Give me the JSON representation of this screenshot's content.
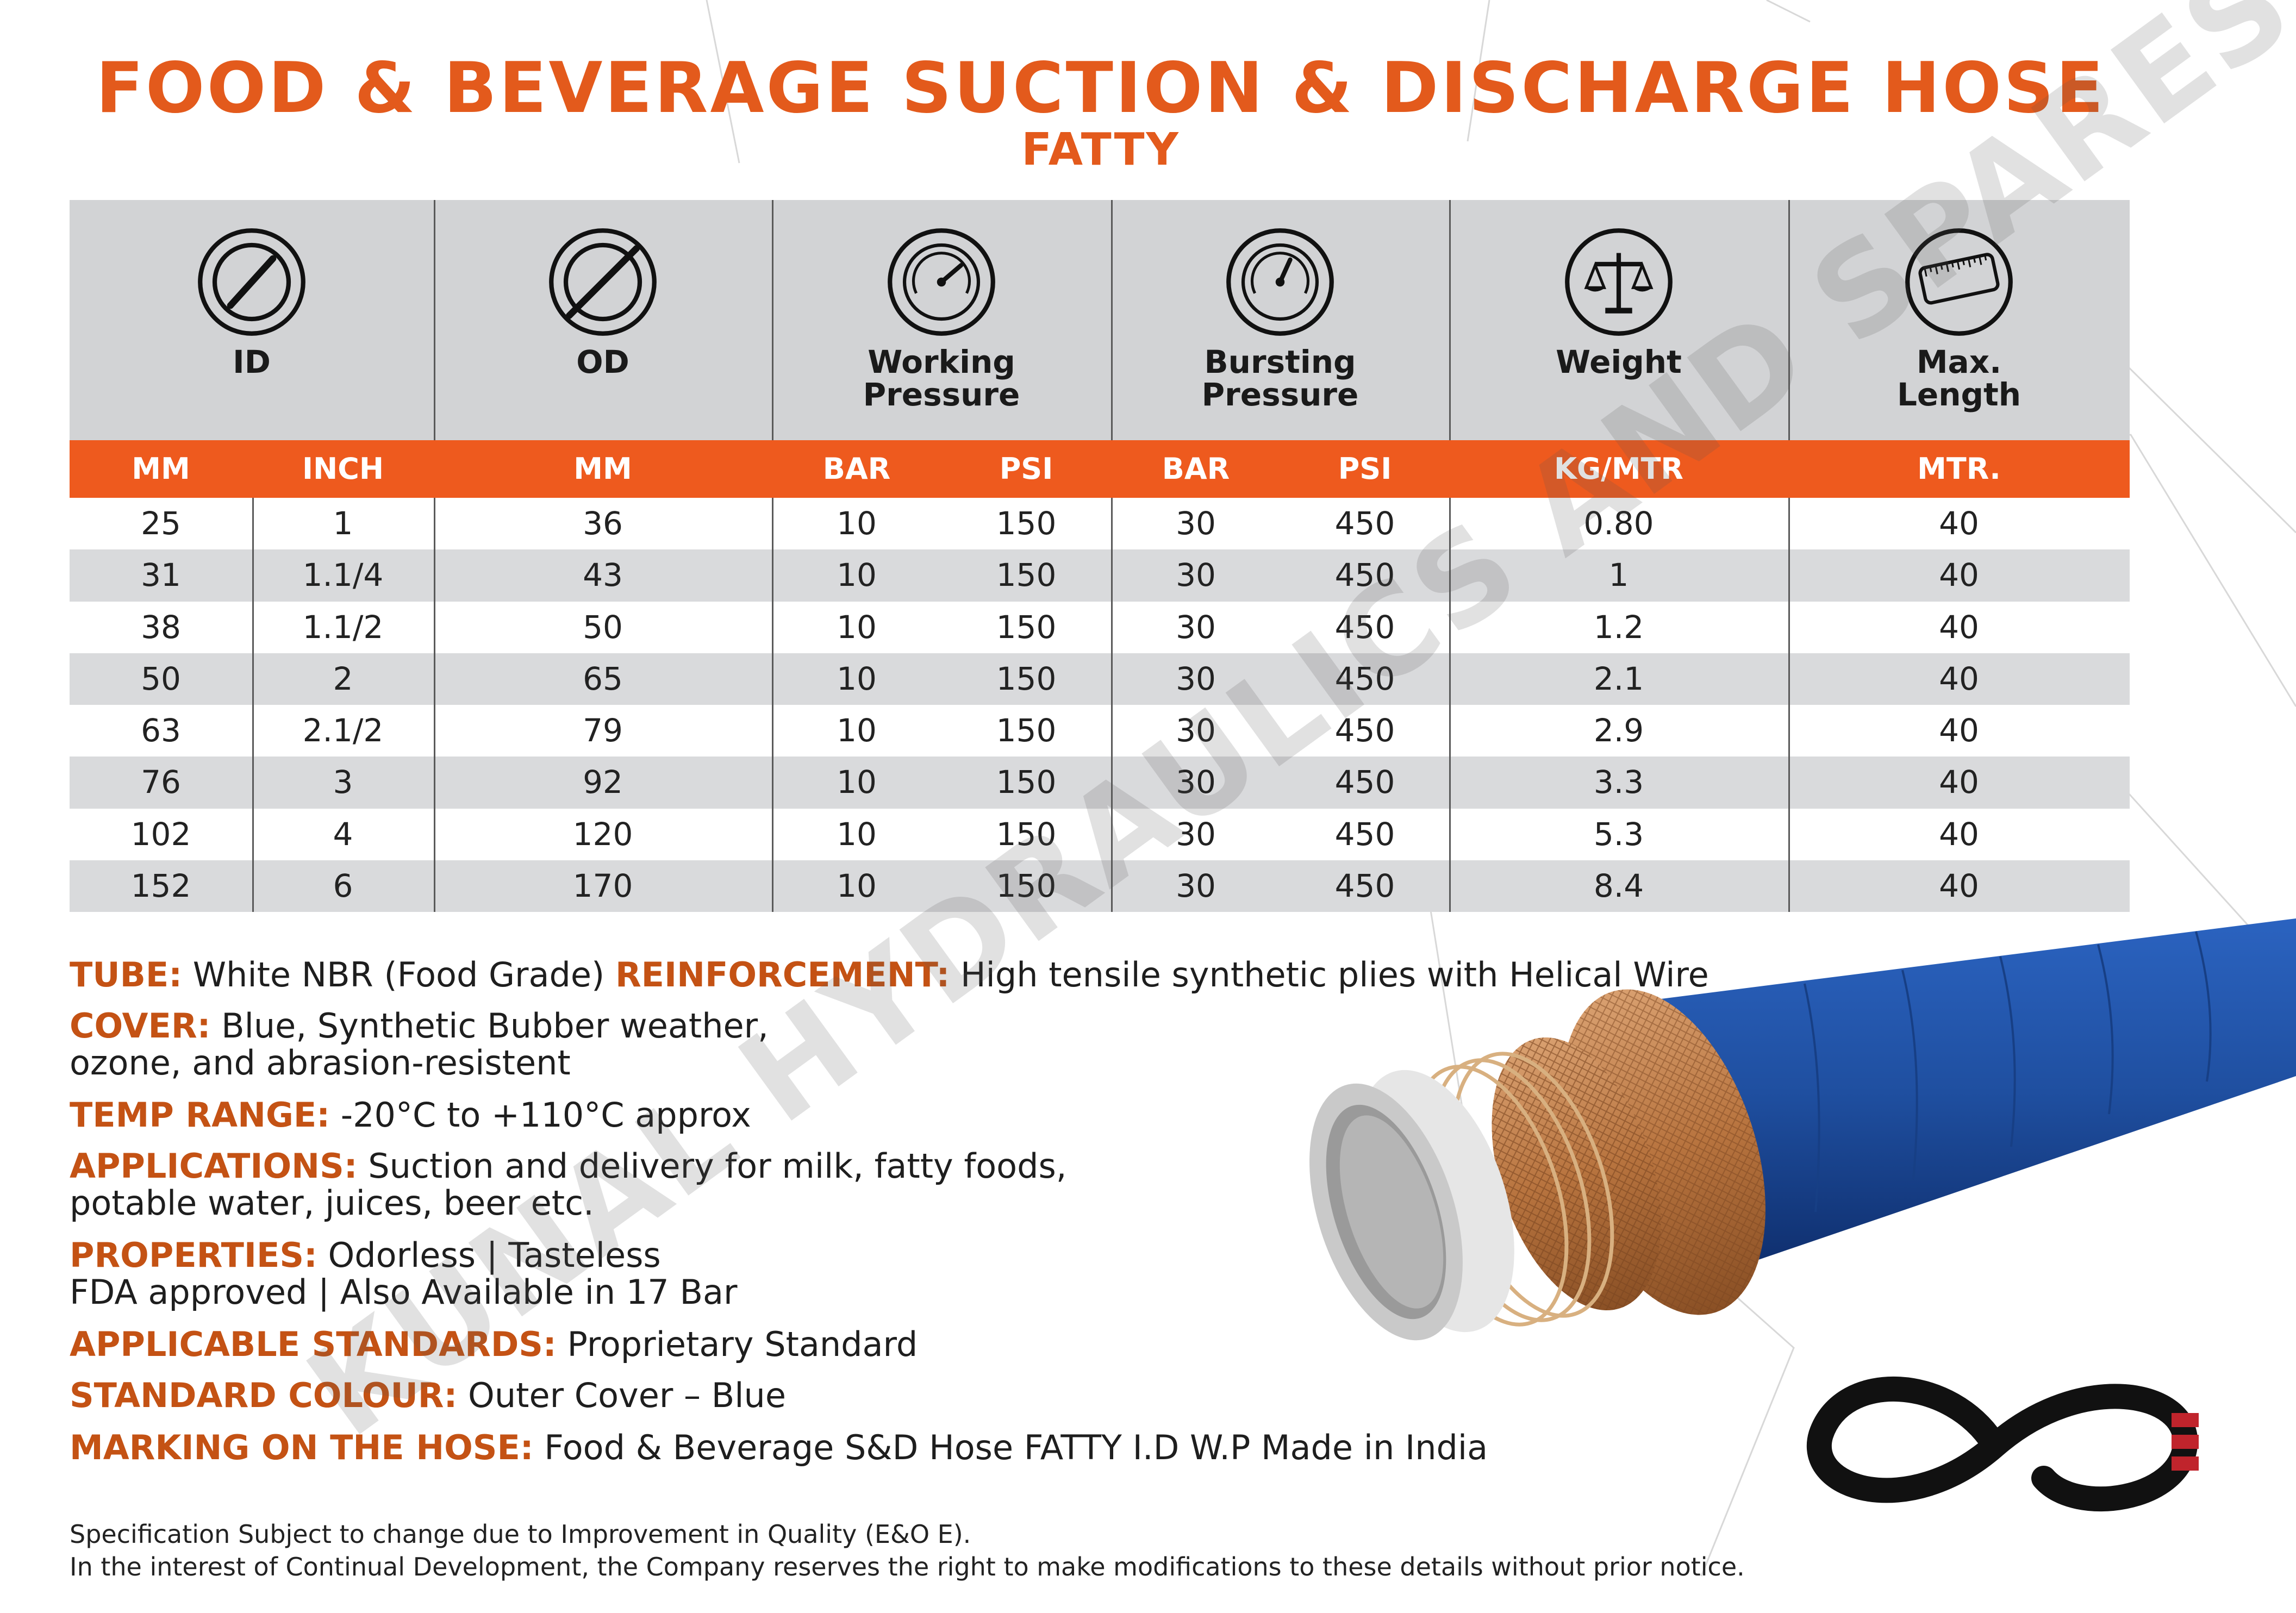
{
  "title": "FOOD & BEVERAGE SUCTION & DISCHARGE HOSE",
  "subtitle": "FATTY",
  "watermark": "KUNAL HYDRAULICS AND SPARES",
  "colors": {
    "accent": "#e35a1c",
    "header_bg": "#d2d3d5",
    "unit_bar": "#ee5a1e",
    "hose_blue": "#1f4fa0"
  },
  "headers": [
    {
      "label": "ID",
      "icon": "inner-diameter-icon"
    },
    {
      "label": "OD",
      "icon": "outer-diameter-icon"
    },
    {
      "label": "Working Pressure",
      "icon": "pressure-gauge-icon"
    },
    {
      "label": "Bursting Pressure",
      "icon": "bursting-gauge-icon"
    },
    {
      "label": "Weight",
      "icon": "scale-icon"
    },
    {
      "label": "Max. Length",
      "icon": "measuring-tape-icon"
    }
  ],
  "units": [
    "MM",
    "INCH",
    "MM",
    "BAR",
    "PSI",
    "BAR",
    "PSI",
    "KG/MTR",
    "MTR."
  ],
  "rows": [
    [
      "25",
      "1",
      "36",
      "10",
      "150",
      "30",
      "450",
      "0.80",
      "40"
    ],
    [
      "31",
      "1.1/4",
      "43",
      "10",
      "150",
      "30",
      "450",
      "1",
      "40"
    ],
    [
      "38",
      "1.1/2",
      "50",
      "10",
      "150",
      "30",
      "450",
      "1.2",
      "40"
    ],
    [
      "50",
      "2",
      "65",
      "10",
      "150",
      "30",
      "450",
      "2.1",
      "40"
    ],
    [
      "63",
      "2.1/2",
      "79",
      "10",
      "150",
      "30",
      "450",
      "2.9",
      "40"
    ],
    [
      "76",
      "3",
      "92",
      "10",
      "150",
      "30",
      "450",
      "3.3",
      "40"
    ],
    [
      "102",
      "4",
      "120",
      "10",
      "150",
      "30",
      "450",
      "5.3",
      "40"
    ],
    [
      "152",
      "6",
      "170",
      "10",
      "150",
      "30",
      "450",
      "8.4",
      "40"
    ]
  ],
  "specs": {
    "tube_label": "TUBE:",
    "tube_value": " White NBR (Food Grade)  ",
    "reinforcement_label": "REINFORCEMENT:",
    "reinforcement_value": " High tensile synthetic plies with Helical Wire",
    "cover_label": "COVER:",
    "cover_value_1": " Blue, Synthetic Bubber weather,",
    "cover_value_2": "ozone, and abrasion-resistent",
    "temp_label": "TEMP RANGE:",
    "temp_value": " -20°C to +110°C approx",
    "applications_label": "APPLICATIONS:",
    "applications_value_1": " Suction and delivery for milk, fatty foods,",
    "applications_value_2": "potable water, juices, beer etc.",
    "properties_label": "PROPERTIES:",
    "properties_value_1": " Odorless  |  Tasteless",
    "properties_value_2": "FDA approved  |  Also Available in 17 Bar",
    "standards_label": "APPLICABLE STANDARDS:",
    "standards_value": " Proprietary Standard",
    "colour_label": "STANDARD COLOUR:",
    "colour_value": " Outer Cover – Blue",
    "marking_label": "MARKING ON THE HOSE:",
    "marking_value": " Food & Beverage S&D Hose FATTY I.D W.P Made in India"
  },
  "footer": {
    "line1": "Specification Subject to change due to Improvement in Quality (E&O E).",
    "line2": "In the interest of Continual Development, the Company reserves the right to make modifications to these details without prior notice."
  }
}
